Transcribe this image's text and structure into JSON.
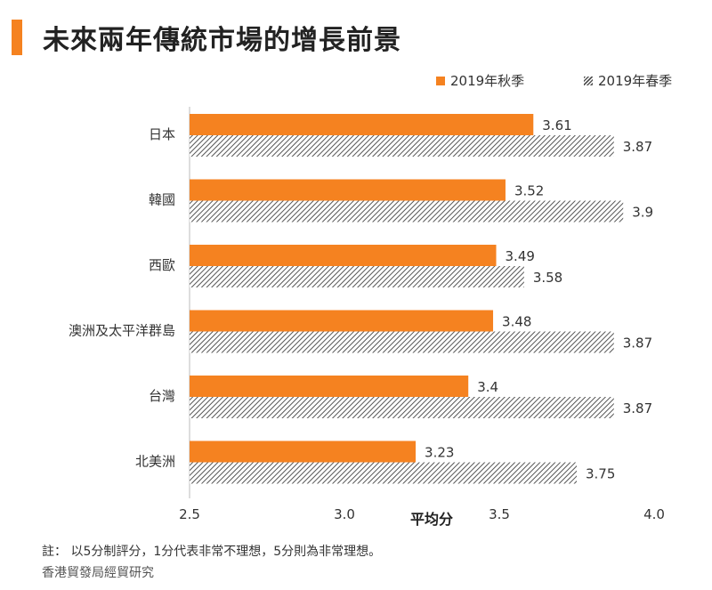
{
  "header": {
    "title": "未來兩年傳統市場的增長前景"
  },
  "chart_data": {
    "type": "bar",
    "orientation": "horizontal",
    "categories": [
      "日本",
      "韓國",
      "西歐",
      "澳洲及太平洋群島",
      "台灣",
      "北美洲"
    ],
    "series": [
      {
        "name": "2019年秋季",
        "values": [
          3.61,
          3.52,
          3.49,
          3.48,
          3.4,
          3.23
        ],
        "labels": [
          "3.61",
          "3.52",
          "3.49",
          "3.48",
          "3.4",
          "3.23"
        ],
        "color": "#f58220",
        "pattern": "solid"
      },
      {
        "name": "2019年春季",
        "values": [
          3.87,
          3.9,
          3.58,
          3.87,
          3.87,
          3.75
        ],
        "labels": [
          "3.87",
          "3.9",
          "3.58",
          "3.87",
          "3.87",
          "3.75"
        ],
        "color": "#555555",
        "pattern": "diagonal-hatch"
      }
    ],
    "xlabel": "平均分",
    "xlim": [
      2.5,
      4.0
    ],
    "xticks": [
      2.5,
      3.0,
      3.5,
      4.0
    ],
    "xtick_labels": [
      "2.5",
      "3.0",
      "3.5",
      "4.0"
    ],
    "legend_position": "top-right",
    "grid": false
  },
  "footer": {
    "note": "註： 以5分制評分，1分代表非常不理想，5分則為非常理想。",
    "source": "香港貿發局經貿研究"
  }
}
